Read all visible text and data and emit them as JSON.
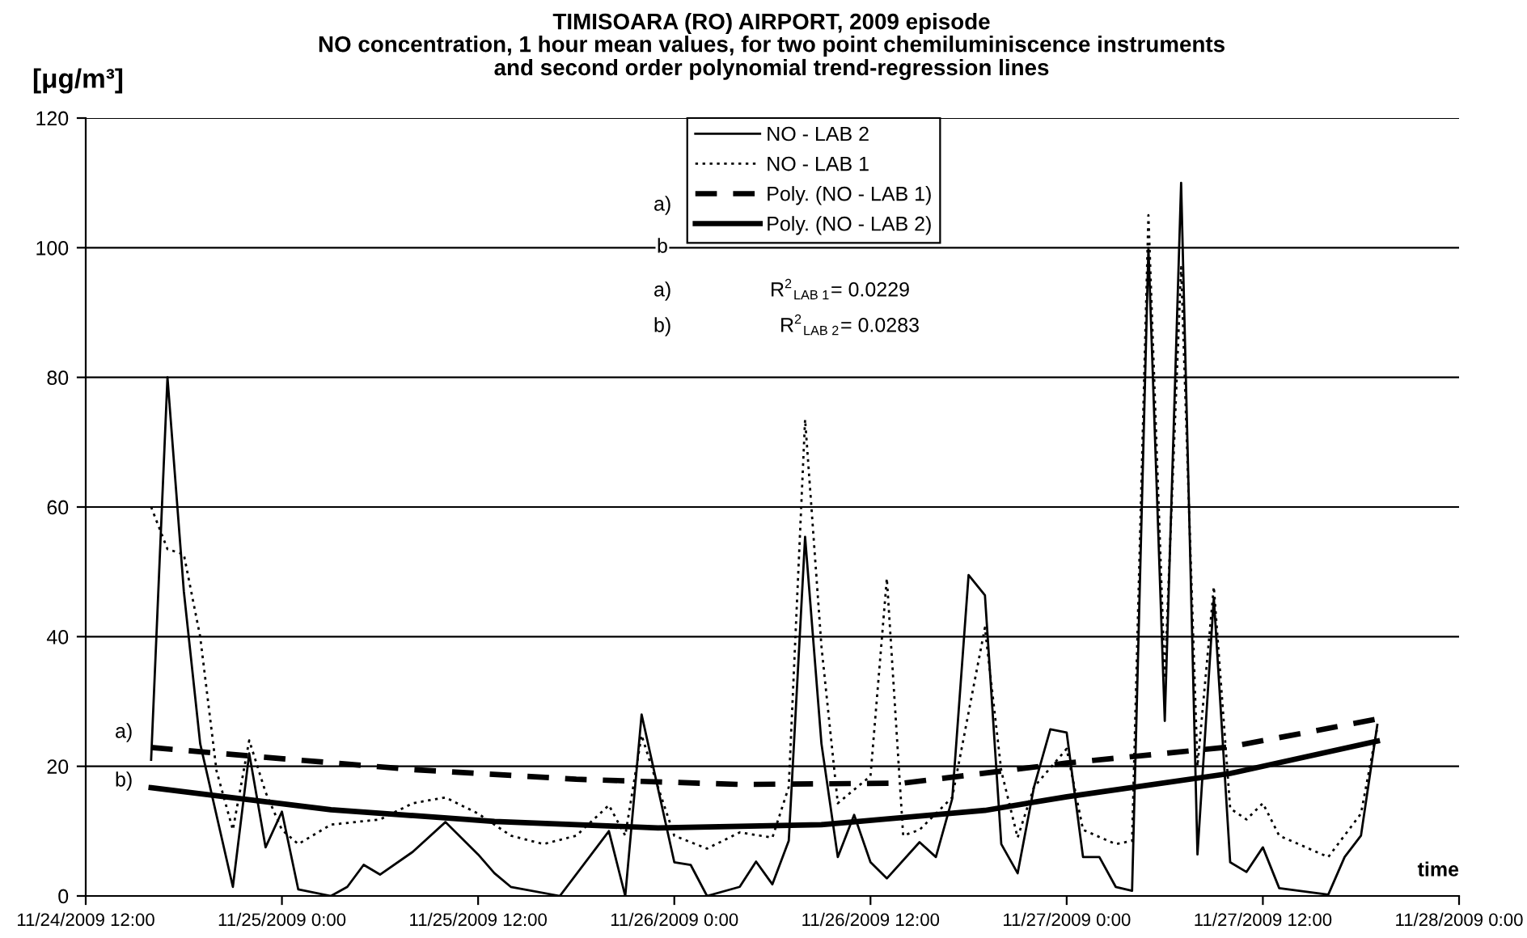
{
  "chart_data": {
    "type": "line",
    "title": "TIMISOARA (RO) AIRPORT, 2009 episode",
    "subtitle": "NO concentration, 1 hour mean values, for two point chemiluminiscence instruments\nand second order polynomial trend-regression lines",
    "ylabel": "[μg/m³]",
    "xlabel": "time",
    "x": [
      "2009-11-24T16:00",
      "2009-11-24T17:00",
      "2009-11-24T18:00",
      "2009-11-24T19:00",
      "2009-11-24T21:00",
      "2009-11-24T22:00",
      "2009-11-24T23:00",
      "2009-11-25T00:00",
      "2009-11-25T01:00",
      "2009-11-25T03:00",
      "2009-11-25T04:00",
      "2009-11-25T05:00",
      "2009-11-25T06:00",
      "2009-11-25T08:00",
      "2009-11-25T10:00",
      "2009-11-25T12:00",
      "2009-11-25T13:00",
      "2009-11-25T14:00",
      "2009-11-25T17:00",
      "2009-11-25T20:00",
      "2009-11-25T21:00",
      "2009-11-25T22:00",
      "2009-11-26T00:00",
      "2009-11-26T01:00",
      "2009-11-26T02:00",
      "2009-11-26T04:00",
      "2009-11-26T05:00",
      "2009-11-26T06:00",
      "2009-11-26T07:00",
      "2009-11-26T08:00",
      "2009-11-26T09:00",
      "2009-11-26T10:00",
      "2009-11-26T11:00",
      "2009-11-26T12:00",
      "2009-11-26T13:00",
      "2009-11-26T15:00",
      "2009-11-26T16:00",
      "2009-11-26T17:00",
      "2009-11-26T18:00",
      "2009-11-26T19:00",
      "2009-11-26T20:00",
      "2009-11-26T21:00",
      "2009-11-26T22:00",
      "2009-11-26T23:00",
      "2009-11-27T00:00",
      "2009-11-27T01:00",
      "2009-11-27T02:00",
      "2009-11-27T03:00",
      "2009-11-27T04:00",
      "2009-11-27T05:00",
      "2009-11-27T06:00",
      "2009-11-27T07:00",
      "2009-11-27T08:00",
      "2009-11-27T09:00",
      "2009-11-27T10:00",
      "2009-11-27T11:00",
      "2009-11-27T12:00",
      "2009-11-27T13:00",
      "2009-11-27T16:00",
      "2009-11-27T17:00",
      "2009-11-27T18:00",
      "2009-11-27T19:00"
    ],
    "series": [
      {
        "name": "NO - LAB 2",
        "color": "#000000",
        "line_style": "solid",
        "values": [
          21,
          80,
          47,
          23.5,
          1.4,
          22,
          7.5,
          13,
          1,
          0,
          1.4,
          4.8,
          3.3,
          6.8,
          11.4,
          6.4,
          3.5,
          1.4,
          0,
          10,
          0,
          28,
          5.2,
          4.8,
          0,
          1.4,
          5.3,
          1.8,
          8.5,
          55.4,
          23.5,
          6,
          12.5,
          5.2,
          2.7,
          8.3,
          6,
          15,
          49.5,
          46.4,
          8,
          3.5,
          16.8,
          25.7,
          25.2,
          6,
          6,
          1.4,
          0.8,
          100,
          27,
          110,
          6.4,
          46,
          5.2,
          3.7,
          7.5,
          1.2,
          0.2,
          6,
          9.3,
          26.4
        ]
      },
      {
        "name": "NO - LAB 1",
        "color": "#000000",
        "line_style": "dotted",
        "x": [
          "2009-11-24T16:00",
          "2009-11-24T17:00",
          "2009-11-24T18:00",
          "2009-11-24T19:00",
          "2009-11-24T20:00",
          "2009-11-24T21:00",
          "2009-11-24T22:00",
          "2009-11-24T23:00",
          "2009-11-25T00:00",
          "2009-11-25T01:00",
          "2009-11-25T03:00",
          "2009-11-25T06:00",
          "2009-11-25T08:00",
          "2009-11-25T10:00",
          "2009-11-25T12:00",
          "2009-11-25T14:00",
          "2009-11-25T16:00",
          "2009-11-25T18:00",
          "2009-11-25T20:00",
          "2009-11-25T21:00",
          "2009-11-25T22:00",
          "2009-11-25T23:00",
          "2009-11-26T00:00",
          "2009-11-26T02:00",
          "2009-11-26T04:00",
          "2009-11-26T06:00",
          "2009-11-26T07:00",
          "2009-11-26T08:00",
          "2009-11-26T09:00",
          "2009-11-26T10:00",
          "2009-11-26T12:00",
          "2009-11-26T13:00",
          "2009-11-26T14:00",
          "2009-11-26T15:00",
          "2009-11-26T17:00",
          "2009-11-26T19:00",
          "2009-11-26T20:00",
          "2009-11-26T21:00",
          "2009-11-26T22:00",
          "2009-11-27T00:00",
          "2009-11-27T01:00",
          "2009-11-27T03:00",
          "2009-11-27T04:00",
          "2009-11-27T05:00",
          "2009-11-27T06:00",
          "2009-11-27T07:00",
          "2009-11-27T08:00",
          "2009-11-27T09:00",
          "2009-11-27T10:00",
          "2009-11-27T11:00",
          "2009-11-27T12:00",
          "2009-11-27T13:00",
          "2009-11-27T16:00",
          "2009-11-27T18:00",
          "2009-11-27T19:00"
        ],
        "values": [
          60,
          53.5,
          52.7,
          40,
          19.3,
          10.2,
          24,
          16,
          10.2,
          8,
          11,
          11.8,
          14.3,
          15.2,
          12.7,
          9.3,
          8,
          9.3,
          14,
          9.3,
          24.8,
          16.8,
          9.3,
          7.3,
          9.8,
          9,
          16.8,
          73.5,
          38.5,
          14.3,
          18.5,
          49,
          9.3,
          10.2,
          15.2,
          41.4,
          19.3,
          9,
          16.8,
          22.7,
          10.2,
          8,
          8.5,
          105,
          33.5,
          97,
          20,
          47.7,
          13.5,
          11.8,
          14.3,
          9.3,
          6,
          12.7,
          26
        ]
      },
      {
        "name": "Poly. (NO - LAB 1)",
        "color": "#000000",
        "line_style": "dashed",
        "x": [
          "2009-11-24T16:00",
          "2009-11-24T22:00",
          "2009-11-25T08:00",
          "2009-11-25T18:00",
          "2009-11-26T04:00",
          "2009-11-26T14:00",
          "2009-11-27T00:00",
          "2009-11-27T10:00",
          "2009-11-27T19:00"
        ],
        "values": [
          22.9,
          21.6,
          19.5,
          18,
          17.2,
          17.4,
          20.5,
          23,
          27.3
        ]
      },
      {
        "name": "Poly. (NO - LAB 2)",
        "color": "#000000",
        "line_style": "solid",
        "x": [
          "2009-11-24T16:00",
          "2009-11-25T03:00",
          "2009-11-25T13:00",
          "2009-11-25T23:00",
          "2009-11-26T09:00",
          "2009-11-26T19:00",
          "2009-11-27T00:00",
          "2009-11-27T10:00",
          "2009-11-27T19:00"
        ],
        "values": [
          16.7,
          13.3,
          11.5,
          10.5,
          11,
          13.2,
          15.3,
          18.9,
          23.9
        ]
      }
    ],
    "xlim": [
      "2009-11-24T12:00",
      "2009-11-28T00:00"
    ],
    "xticks": [
      {
        "value": "2009-11-24T12:00",
        "label": "11/24/2009 12:00"
      },
      {
        "value": "2009-11-25T00:00",
        "label": "11/25/2009 0:00"
      },
      {
        "value": "2009-11-25T12:00",
        "label": "11/25/2009 12:00"
      },
      {
        "value": "2009-11-26T00:00",
        "label": "11/26/2009 0:00"
      },
      {
        "value": "2009-11-26T12:00",
        "label": "11/26/2009 12:00"
      },
      {
        "value": "2009-11-27T00:00",
        "label": "11/27/2009 0:00"
      },
      {
        "value": "2009-11-27T12:00",
        "label": "11/27/2009 12:00"
      },
      {
        "value": "2009-11-28T00:00",
        "label": "11/28/2009 0:00"
      }
    ],
    "ylim": [
      0,
      120
    ],
    "yticks": [
      0,
      20,
      40,
      60,
      80,
      100,
      120
    ],
    "grid": "y",
    "legend": "top",
    "marker": "none",
    "annotations": [
      "a)",
      "b",
      "a)",
      "b)",
      "R$^{2}$$_{LAB 1}$= 0.0229",
      "R$^{2}$$_{LAB 2}$= 0.0283",
      "a)",
      "b)"
    ]
  }
}
